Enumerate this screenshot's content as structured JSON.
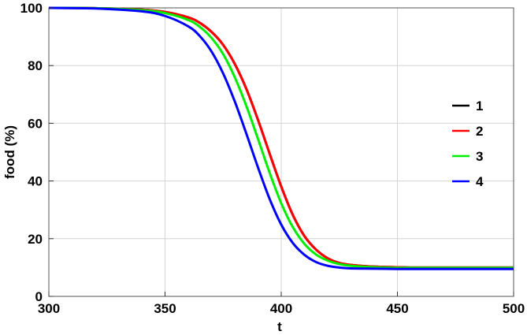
{
  "chart_data": {
    "type": "line",
    "xlabel": "t",
    "ylabel": "food (%)",
    "xlim": [
      300,
      500
    ],
    "ylim": [
      0,
      100
    ],
    "xticks": [
      300,
      350,
      400,
      450,
      500
    ],
    "yticks": [
      0,
      20,
      40,
      60,
      80,
      100
    ],
    "grid": true,
    "legend_position": "right",
    "x": [
      300,
      320,
      340,
      350,
      360,
      365,
      370,
      375,
      380,
      385,
      390,
      395,
      400,
      405,
      410,
      415,
      420,
      425,
      430,
      440,
      450,
      460,
      480,
      500
    ],
    "series": [
      {
        "name": "1",
        "color": "#000000",
        "values": [
          100.0,
          99.9,
          99.4,
          98.6,
          96.7,
          94.8,
          91.7,
          87.2,
          80.6,
          71.9,
          61.2,
          49.5,
          38.1,
          28.2,
          20.9,
          16.2,
          13.2,
          11.6,
          10.9,
          10.3,
          10.1,
          10.0,
          10.0,
          10.0
        ]
      },
      {
        "name": "2",
        "color": "#ff0000",
        "values": [
          100.0,
          99.9,
          99.4,
          98.6,
          96.7,
          94.8,
          91.7,
          87.2,
          80.6,
          71.9,
          61.2,
          49.5,
          38.1,
          28.2,
          20.9,
          16.2,
          13.2,
          11.6,
          10.9,
          10.3,
          10.1,
          10.0,
          10.0,
          10.0
        ]
      },
      {
        "name": "3",
        "color": "#00ee00",
        "values": [
          100.0,
          99.9,
          99.2,
          98.2,
          95.8,
          93.4,
          89.6,
          84.0,
          76.0,
          66.0,
          54.6,
          42.9,
          32.3,
          24.0,
          18.2,
          14.5,
          12.4,
          11.2,
          10.6,
          10.1,
          9.9,
          9.9,
          9.9,
          9.9
        ]
      },
      {
        "name": "4",
        "color": "#0000ff",
        "values": [
          100.0,
          99.8,
          98.8,
          97.2,
          93.6,
          90.2,
          84.9,
          77.3,
          67.6,
          56.4,
          44.7,
          33.8,
          24.9,
          18.5,
          14.4,
          11.9,
          10.6,
          10.0,
          9.7,
          9.6,
          9.5,
          9.5,
          9.5,
          9.5
        ]
      }
    ]
  }
}
